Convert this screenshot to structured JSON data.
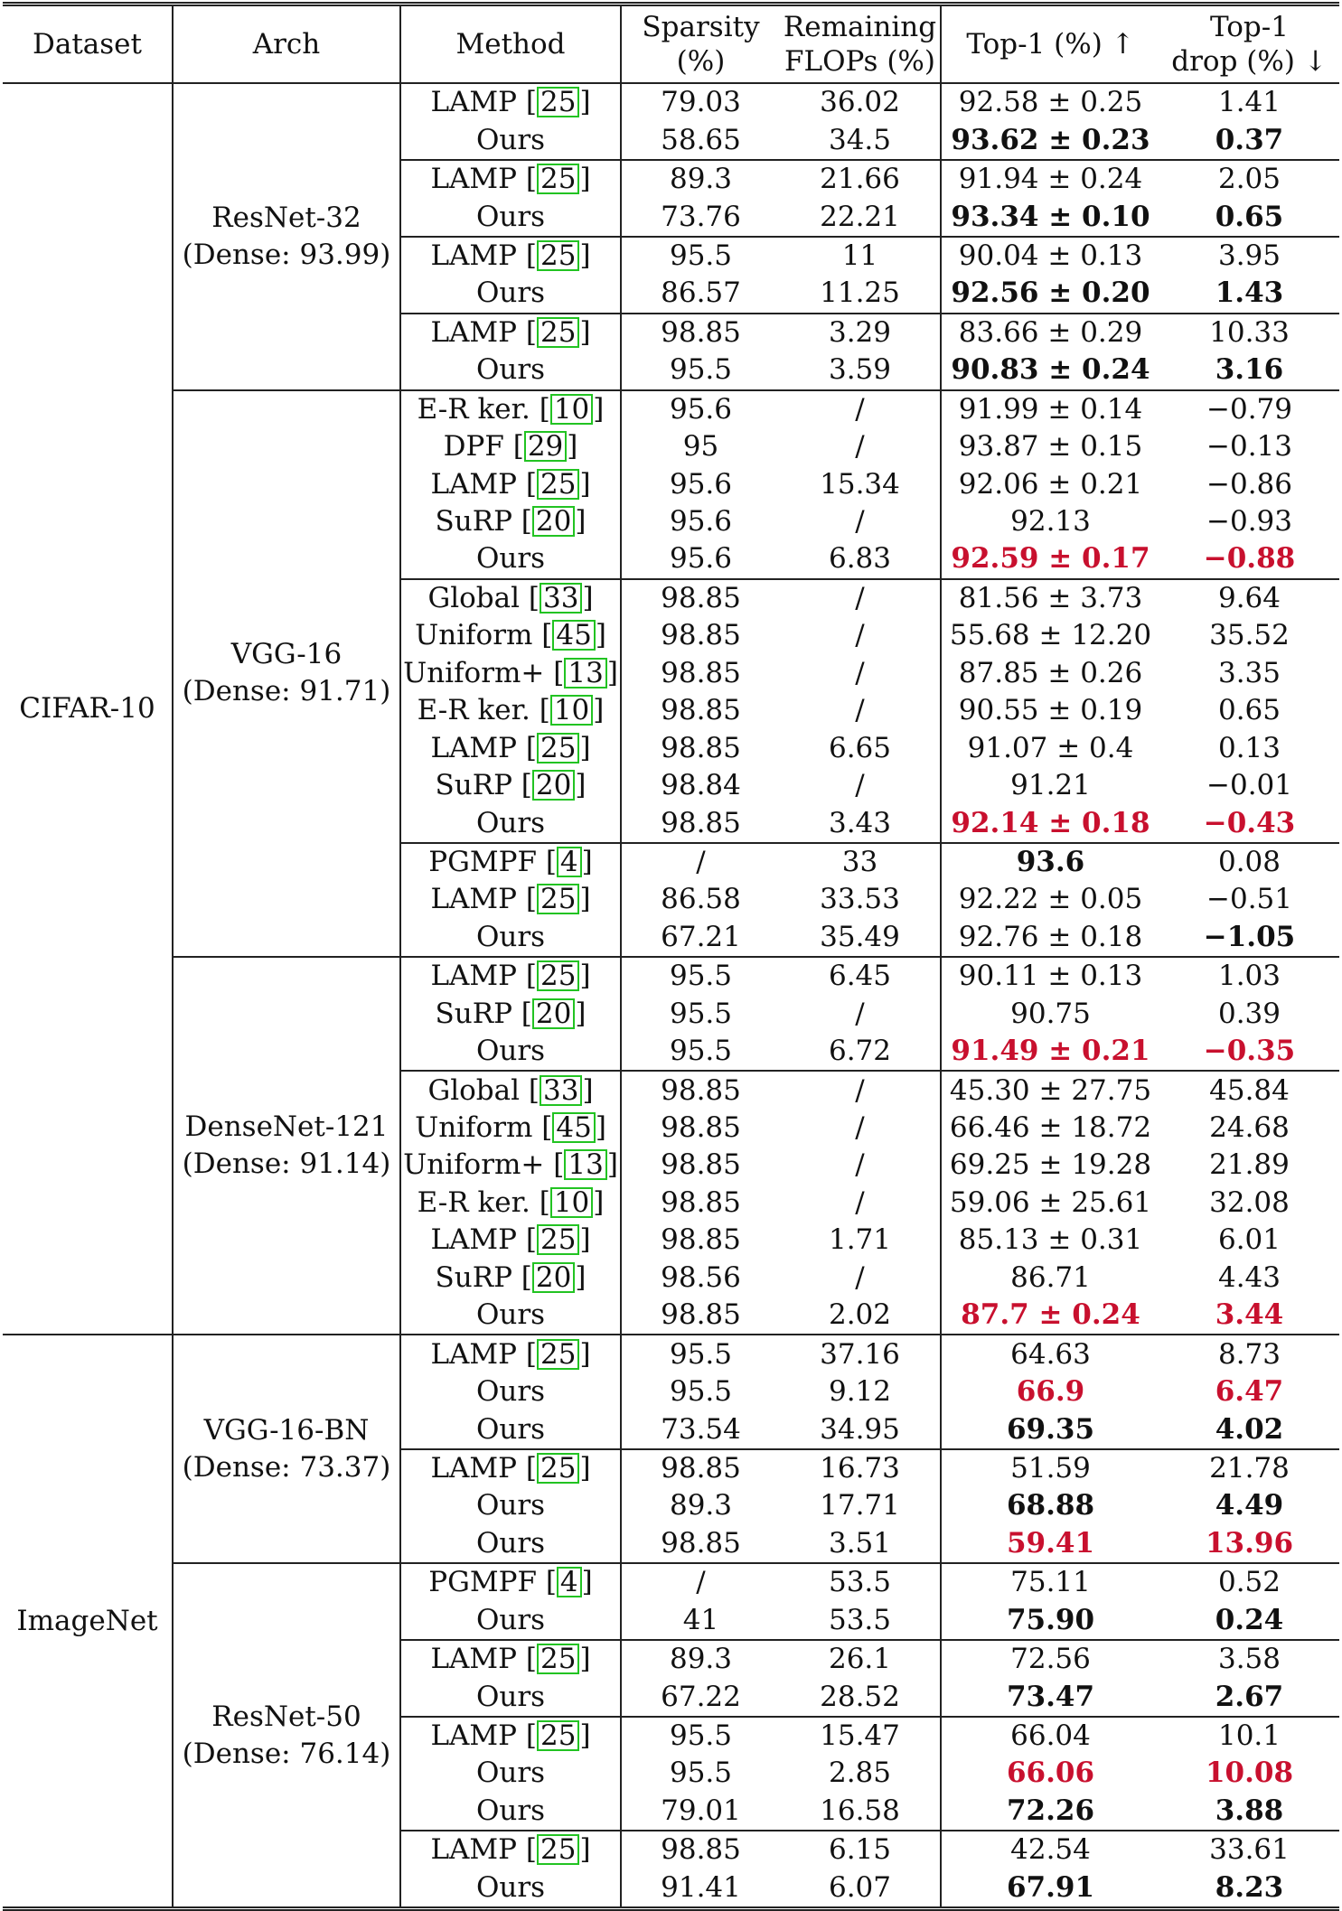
{
  "headers": {
    "dataset": "Dataset",
    "arch": "Arch",
    "method": "Method",
    "sparsity": [
      "Sparsity",
      "(%)"
    ],
    "flops": [
      "Remaining",
      "FLOPs (%)"
    ],
    "top1": "Top-1 (%) ↑",
    "drop": [
      "Top-1",
      "drop (%) ↓"
    ]
  },
  "accent_colors": {
    "highlight_red": "#c8102e",
    "cite_box_green": "#22c322"
  },
  "datasets": [
    {
      "name": "CIFAR-10",
      "archs": [
        {
          "name": [
            "ResNet-32",
            "(Dense: 93.99)"
          ],
          "groups": [
            [
              {
                "method": "LAMP",
                "cite": "25",
                "sparsity": "79.03",
                "flops": "36.02",
                "top1": "92.58 ± 0.25",
                "drop": "1.41",
                "style": ""
              },
              {
                "method": "Ours",
                "cite": "",
                "sparsity": "58.65",
                "flops": "34.5",
                "top1": "93.62 ± 0.23",
                "drop": "0.37",
                "style": "bold"
              }
            ],
            [
              {
                "method": "LAMP",
                "cite": "25",
                "sparsity": "89.3",
                "flops": "21.66",
                "top1": "91.94 ± 0.24",
                "drop": "2.05",
                "style": ""
              },
              {
                "method": "Ours",
                "cite": "",
                "sparsity": "73.76",
                "flops": "22.21",
                "top1": "93.34 ± 0.10",
                "drop": "0.65",
                "style": "bold"
              }
            ],
            [
              {
                "method": "LAMP",
                "cite": "25",
                "sparsity": "95.5",
                "flops": "11",
                "top1": "90.04 ± 0.13",
                "drop": "3.95",
                "style": ""
              },
              {
                "method": "Ours",
                "cite": "",
                "sparsity": "86.57",
                "flops": "11.25",
                "top1": "92.56 ± 0.20",
                "drop": "1.43",
                "style": "bold"
              }
            ],
            [
              {
                "method": "LAMP",
                "cite": "25",
                "sparsity": "98.85",
                "flops": "3.29",
                "top1": "83.66 ± 0.29",
                "drop": "10.33",
                "style": ""
              },
              {
                "method": "Ours",
                "cite": "",
                "sparsity": "95.5",
                "flops": "3.59",
                "top1": "90.83 ± 0.24",
                "drop": "3.16",
                "style": "bold"
              }
            ]
          ]
        },
        {
          "name": [
            "VGG-16",
            "(Dense: 91.71)"
          ],
          "groups": [
            [
              {
                "method": "E-R ker.",
                "cite": "10",
                "sparsity": "95.6",
                "flops": "/",
                "top1": "91.99 ± 0.14",
                "drop": "−0.79",
                "style": ""
              },
              {
                "method": "DPF",
                "cite": "29",
                "sparsity": "95",
                "flops": "/",
                "top1": "93.87 ± 0.15",
                "drop": "−0.13",
                "style": ""
              },
              {
                "method": "LAMP",
                "cite": "25",
                "sparsity": "95.6",
                "flops": "15.34",
                "top1": "92.06 ± 0.21",
                "drop": "−0.86",
                "style": ""
              },
              {
                "method": "SuRP",
                "cite": "20",
                "sparsity": "95.6",
                "flops": "/",
                "top1": "92.13",
                "drop": "−0.93",
                "style": ""
              },
              {
                "method": "Ours",
                "cite": "",
                "sparsity": "95.6",
                "flops": "6.83",
                "top1": "92.59 ± 0.17",
                "drop": "−0.88",
                "style": "red"
              }
            ],
            [
              {
                "method": "Global",
                "cite": "33",
                "sparsity": "98.85",
                "flops": "/",
                "top1": "81.56 ± 3.73",
                "drop": "9.64",
                "style": ""
              },
              {
                "method": "Uniform",
                "cite": "45",
                "sparsity": "98.85",
                "flops": "/",
                "top1": "55.68 ± 12.20",
                "drop": "35.52",
                "style": ""
              },
              {
                "method": "Uniform+",
                "cite": "13",
                "sparsity": "98.85",
                "flops": "/",
                "top1": "87.85 ± 0.26",
                "drop": "3.35",
                "style": ""
              },
              {
                "method": "E-R ker.",
                "cite": "10",
                "sparsity": "98.85",
                "flops": "/",
                "top1": "90.55 ± 0.19",
                "drop": "0.65",
                "style": ""
              },
              {
                "method": "LAMP",
                "cite": "25",
                "sparsity": "98.85",
                "flops": "6.65",
                "top1": "91.07 ± 0.4",
                "drop": "0.13",
                "style": ""
              },
              {
                "method": "SuRP",
                "cite": "20",
                "sparsity": "98.84",
                "flops": "/",
                "top1": "91.21",
                "drop": "−0.01",
                "style": ""
              },
              {
                "method": "Ours",
                "cite": "",
                "sparsity": "98.85",
                "flops": "3.43",
                "top1": "92.14 ± 0.18",
                "drop": "−0.43",
                "style": "red"
              }
            ],
            [
              {
                "method": "PGMPF",
                "cite": "4",
                "sparsity": "/",
                "flops": "33",
                "top1": "93.6",
                "drop": "0.08",
                "style": "",
                "top1_bold": true
              },
              {
                "method": "LAMP",
                "cite": "25",
                "sparsity": "86.58",
                "flops": "33.53",
                "top1": "92.22 ± 0.05",
                "drop": "−0.51",
                "style": ""
              },
              {
                "method": "Ours",
                "cite": "",
                "sparsity": "67.21",
                "flops": "35.49",
                "top1": "92.76 ± 0.18",
                "drop": "−1.05",
                "style": "",
                "drop_bold": true
              }
            ]
          ]
        },
        {
          "name": [
            "DenseNet-121",
            "(Dense: 91.14)"
          ],
          "groups": [
            [
              {
                "method": "LAMP",
                "cite": "25",
                "sparsity": "95.5",
                "flops": "6.45",
                "top1": "90.11 ± 0.13",
                "drop": "1.03",
                "style": ""
              },
              {
                "method": "SuRP",
                "cite": "20",
                "sparsity": "95.5",
                "flops": "/",
                "top1": "90.75",
                "drop": "0.39",
                "style": ""
              },
              {
                "method": "Ours",
                "cite": "",
                "sparsity": "95.5",
                "flops": "6.72",
                "top1": "91.49 ± 0.21",
                "drop": "−0.35",
                "style": "red"
              }
            ],
            [
              {
                "method": "Global",
                "cite": "33",
                "sparsity": "98.85",
                "flops": "/",
                "top1": "45.30 ± 27.75",
                "drop": "45.84",
                "style": ""
              },
              {
                "method": "Uniform",
                "cite": "45",
                "sparsity": "98.85",
                "flops": "/",
                "top1": "66.46 ± 18.72",
                "drop": "24.68",
                "style": ""
              },
              {
                "method": "Uniform+",
                "cite": "13",
                "sparsity": "98.85",
                "flops": "/",
                "top1": "69.25 ± 19.28",
                "drop": "21.89",
                "style": ""
              },
              {
                "method": "E-R ker.",
                "cite": "10",
                "sparsity": "98.85",
                "flops": "/",
                "top1": "59.06 ± 25.61",
                "drop": "32.08",
                "style": ""
              },
              {
                "method": "LAMP",
                "cite": "25",
                "sparsity": "98.85",
                "flops": "1.71",
                "top1": "85.13 ± 0.31",
                "drop": "6.01",
                "style": ""
              },
              {
                "method": "SuRP",
                "cite": "20",
                "sparsity": "98.56",
                "flops": "/",
                "top1": "86.71",
                "drop": "4.43",
                "style": ""
              },
              {
                "method": "Ours",
                "cite": "",
                "sparsity": "98.85",
                "flops": "2.02",
                "top1": "87.7 ± 0.24",
                "drop": "3.44",
                "style": "red"
              }
            ]
          ]
        }
      ]
    },
    {
      "name": "ImageNet",
      "archs": [
        {
          "name": [
            "VGG-16-BN",
            "(Dense: 73.37)"
          ],
          "groups": [
            [
              {
                "method": "LAMP",
                "cite": "25",
                "sparsity": "95.5",
                "flops": "37.16",
                "top1": "64.63",
                "drop": "8.73",
                "style": ""
              },
              {
                "method": "Ours",
                "cite": "",
                "sparsity": "95.5",
                "flops": "9.12",
                "top1": "66.9",
                "drop": "6.47",
                "style": "red"
              },
              {
                "method": "Ours",
                "cite": "",
                "sparsity": "73.54",
                "flops": "34.95",
                "top1": "69.35",
                "drop": "4.02",
                "style": "bold"
              }
            ],
            [
              {
                "method": "LAMP",
                "cite": "25",
                "sparsity": "98.85",
                "flops": "16.73",
                "top1": "51.59",
                "drop": "21.78",
                "style": ""
              },
              {
                "method": "Ours",
                "cite": "",
                "sparsity": "89.3",
                "flops": "17.71",
                "top1": "68.88",
                "drop": "4.49",
                "style": "bold"
              },
              {
                "method": "Ours",
                "cite": "",
                "sparsity": "98.85",
                "flops": "3.51",
                "top1": "59.41",
                "drop": "13.96",
                "style": "red"
              }
            ]
          ]
        },
        {
          "name": [
            "ResNet-50",
            "(Dense: 76.14)"
          ],
          "groups": [
            [
              {
                "method": "PGMPF",
                "cite": "4",
                "sparsity": "/",
                "flops": "53.5",
                "top1": "75.11",
                "drop": "0.52",
                "style": ""
              },
              {
                "method": "Ours",
                "cite": "",
                "sparsity": "41",
                "flops": "53.5",
                "top1": "75.90",
                "drop": "0.24",
                "style": "bold"
              }
            ],
            [
              {
                "method": "LAMP",
                "cite": "25",
                "sparsity": "89.3",
                "flops": "26.1",
                "top1": "72.56",
                "drop": "3.58",
                "style": ""
              },
              {
                "method": "Ours",
                "cite": "",
                "sparsity": "67.22",
                "flops": "28.52",
                "top1": "73.47",
                "drop": "2.67",
                "style": "bold"
              }
            ],
            [
              {
                "method": "LAMP",
                "cite": "25",
                "sparsity": "95.5",
                "flops": "15.47",
                "top1": "66.04",
                "drop": "10.1",
                "style": ""
              },
              {
                "method": "Ours",
                "cite": "",
                "sparsity": "95.5",
                "flops": "2.85",
                "top1": "66.06",
                "drop": "10.08",
                "style": "red"
              },
              {
                "method": "Ours",
                "cite": "",
                "sparsity": "79.01",
                "flops": "16.58",
                "top1": "72.26",
                "drop": "3.88",
                "style": "bold"
              }
            ],
            [
              {
                "method": "LAMP",
                "cite": "25",
                "sparsity": "98.85",
                "flops": "6.15",
                "top1": "42.54",
                "drop": "33.61",
                "style": ""
              },
              {
                "method": "Ours",
                "cite": "",
                "sparsity": "91.41",
                "flops": "6.07",
                "top1": "67.91",
                "drop": "8.23",
                "style": "bold"
              }
            ]
          ]
        }
      ]
    }
  ]
}
